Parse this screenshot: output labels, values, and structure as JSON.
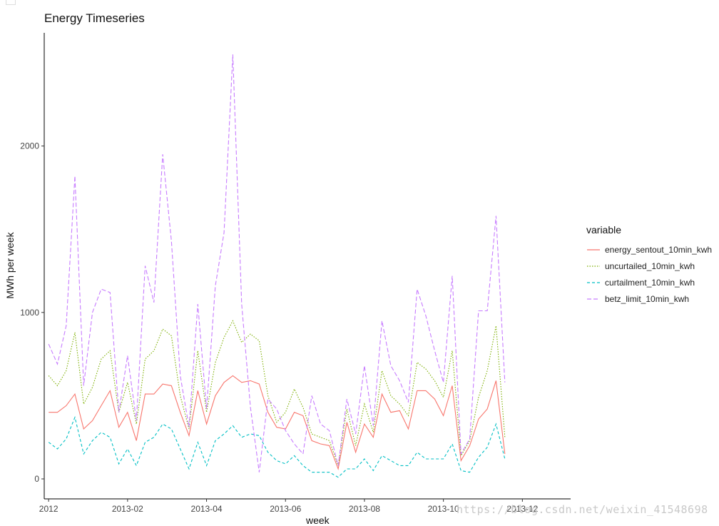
{
  "chart_data": {
    "type": "line",
    "title": "Energy Timeseries",
    "xlabel": "week",
    "ylabel": "MWh per week",
    "x_tick_labels": [
      "2012",
      "2013-02",
      "2013-04",
      "2013-06",
      "2013-08",
      "2013-10",
      "2013-12"
    ],
    "x_tick_positions": [
      0,
      9,
      18,
      27,
      36,
      45,
      54
    ],
    "x_range": [
      -0.5,
      59.5
    ],
    "y_ticks": [
      0,
      1000,
      2000
    ],
    "ylim": [
      -120,
      2680
    ],
    "grid": false,
    "legend_title": "variable",
    "legend_position": "right",
    "series": [
      {
        "name": "energy_sentout_10min_kwh",
        "color": "#f8766d",
        "dash": "solid",
        "values": [
          400,
          400,
          440,
          510,
          300,
          350,
          440,
          530,
          310,
          400,
          230,
          510,
          510,
          570,
          560,
          400,
          260,
          530,
          330,
          500,
          580,
          620,
          580,
          590,
          570,
          400,
          310,
          300,
          400,
          380,
          230,
          210,
          200,
          60,
          340,
          160,
          330,
          250,
          510,
          400,
          410,
          300,
          530,
          530,
          480,
          380,
          560,
          110,
          200,
          360,
          420,
          590,
          150
        ]
      },
      {
        "name": "uncurtailed_10min_kwh",
        "color": "#7cae00",
        "dash": "dotted",
        "values": [
          620,
          560,
          650,
          880,
          450,
          550,
          720,
          770,
          400,
          580,
          330,
          720,
          770,
          900,
          860,
          500,
          300,
          770,
          400,
          700,
          850,
          950,
          820,
          870,
          830,
          500,
          340,
          400,
          540,
          430,
          270,
          250,
          230,
          80,
          420,
          200,
          450,
          280,
          650,
          500,
          450,
          380,
          700,
          660,
          590,
          490,
          770,
          140,
          230,
          490,
          650,
          920,
          250
        ]
      },
      {
        "name": "curtailment_10min_kwh",
        "color": "#00bfc4",
        "dash": "dashed",
        "values": [
          220,
          180,
          240,
          370,
          150,
          230,
          280,
          250,
          90,
          180,
          80,
          220,
          250,
          330,
          300,
          180,
          60,
          220,
          80,
          230,
          270,
          320,
          250,
          270,
          260,
          160,
          110,
          90,
          140,
          80,
          40,
          40,
          40,
          10,
          60,
          60,
          120,
          50,
          140,
          110,
          80,
          80,
          160,
          120,
          120,
          120,
          210,
          50,
          40,
          130,
          190,
          330,
          120
        ]
      },
      {
        "name": "betz_limit_10min_kwh",
        "color": "#c77cff",
        "dash": "longdash",
        "values": [
          810,
          690,
          920,
          1820,
          560,
          1000,
          1140,
          1120,
          400,
          740,
          350,
          1280,
          1060,
          1950,
          1430,
          620,
          310,
          1050,
          420,
          1160,
          1480,
          2550,
          1050,
          430,
          40,
          480,
          420,
          290,
          210,
          150,
          500,
          330,
          290,
          80,
          480,
          270,
          680,
          320,
          950,
          680,
          590,
          460,
          1140,
          980,
          770,
          580,
          1220,
          150,
          240,
          1010,
          1010,
          1580,
          580
        ]
      }
    ]
  },
  "watermark": "https://blog.csdn.net/weixin_41548698"
}
